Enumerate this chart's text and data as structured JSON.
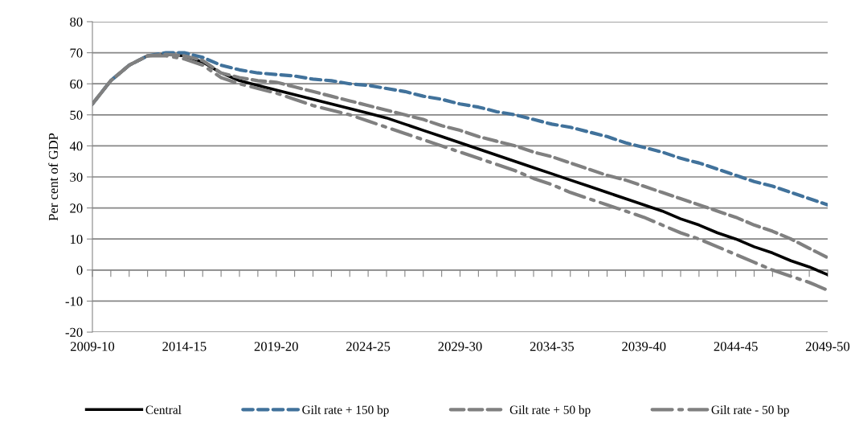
{
  "chart_data": {
    "type": "line",
    "ylabel": "Per cent of GDP",
    "categories": [
      "2009-10",
      null,
      null,
      null,
      null,
      "2014-15",
      null,
      null,
      null,
      null,
      "2019-20",
      null,
      null,
      null,
      null,
      "2024-25",
      null,
      null,
      null,
      null,
      "2029-30",
      null,
      null,
      null,
      null,
      "2034-35",
      null,
      null,
      null,
      null,
      "2039-40",
      null,
      null,
      null,
      null,
      "2044-45",
      null,
      null,
      null,
      null,
      "2049-50"
    ],
    "series": [
      {
        "name": "Central",
        "color": "#000000",
        "line_style": "solid",
        "values": [
          53.5,
          61,
          66,
          69,
          69.5,
          69,
          67,
          63.5,
          61,
          59.5,
          58,
          56.5,
          55,
          53.5,
          52,
          50.5,
          49,
          47,
          45,
          43,
          41,
          39,
          37,
          35,
          33,
          31,
          29,
          27,
          25,
          23,
          21,
          19,
          16.5,
          14.5,
          12,
          10,
          7.5,
          5.5,
          3,
          1,
          -1.5
        ]
      },
      {
        "name": "Gilt rate + 150 bp",
        "color": "#41729b",
        "line_style": "dashed",
        "values": [
          53.5,
          61,
          66,
          69,
          70,
          70,
          68.5,
          66,
          64.5,
          63.5,
          63,
          62.5,
          61.5,
          61,
          60,
          59.5,
          58.5,
          57.5,
          56,
          55,
          53.5,
          52.5,
          51,
          50,
          48.5,
          47,
          46,
          44.5,
          43,
          41,
          39.5,
          38,
          36,
          34.5,
          32.5,
          30.5,
          28.5,
          27,
          25,
          23,
          21
        ]
      },
      {
        "name": "Gilt rate + 50 bp",
        "color": "#808080",
        "line_style": "dashed",
        "values": [
          53.5,
          61,
          66,
          69,
          69.5,
          69,
          67.5,
          63.5,
          62,
          61,
          60.5,
          59,
          57.5,
          56,
          54.5,
          53,
          51.5,
          50,
          48.5,
          46.5,
          45,
          43,
          41.5,
          40,
          38,
          36.5,
          34.5,
          32.5,
          30.5,
          29,
          27,
          25,
          23,
          21,
          19,
          17,
          14.5,
          12.5,
          10,
          7,
          4
        ]
      },
      {
        "name": "Gilt rate - 50 bp",
        "color": "#808080",
        "line_style": "dashdot",
        "values": [
          53.5,
          61,
          66,
          69,
          69,
          68,
          66,
          62,
          60,
          58.5,
          57,
          55,
          53,
          51.5,
          50,
          48,
          46,
          44,
          42,
          40,
          38,
          36,
          34,
          32,
          29.5,
          27.5,
          25,
          23,
          21,
          19,
          17,
          14.5,
          12,
          10,
          7.5,
          5,
          2.5,
          0,
          -2,
          -4,
          -6.5
        ]
      }
    ],
    "ylim": [
      -20,
      80
    ],
    "yticks": [
      -20,
      -10,
      0,
      10,
      20,
      30,
      40,
      50,
      60,
      70,
      80
    ],
    "grid": "y",
    "legend": "bottom",
    "marker": "none"
  }
}
